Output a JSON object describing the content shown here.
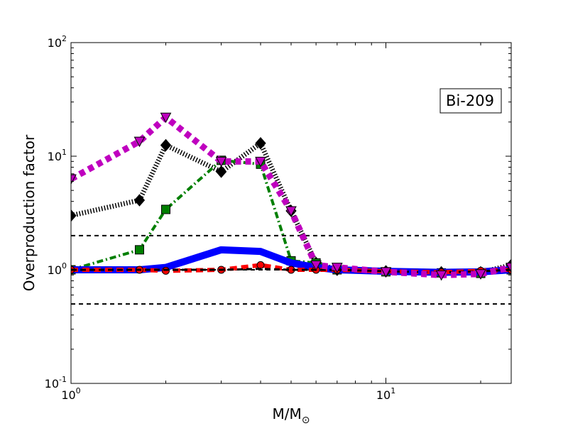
{
  "chart_data": {
    "type": "line",
    "title": "",
    "annotation": "Bi-209",
    "xlabel": "M/M",
    "xlabel_subscript": "⊙",
    "ylabel": "Overproduction factor",
    "xscale": "log",
    "yscale": "log",
    "xlim": [
      1,
      25
    ],
    "ylim": [
      0.1,
      100
    ],
    "x_ticks": [
      {
        "value": 1,
        "base": "10",
        "exp": "0"
      },
      {
        "value": 10,
        "base": "10",
        "exp": "1"
      }
    ],
    "y_ticks": [
      {
        "value": 0.1,
        "base": "10",
        "exp": "-1"
      },
      {
        "value": 1,
        "base": "10",
        "exp": "0"
      },
      {
        "value": 10,
        "base": "10",
        "exp": "1"
      },
      {
        "value": 100,
        "base": "10",
        "exp": "2"
      }
    ],
    "reference_lines": [
      2,
      1,
      0.5
    ],
    "reference_color": "#000000",
    "grid": false,
    "series": [
      {
        "color": "#000000",
        "style": "dotted-thick",
        "marker": "diamond",
        "x": [
          1,
          1.65,
          2,
          3,
          4,
          5,
          6,
          7,
          10,
          15,
          20,
          25
        ],
        "y": [
          3.0,
          4.1,
          12.5,
          7.3,
          13.0,
          3.3,
          1.15,
          1.0,
          0.97,
          0.95,
          0.95,
          1.1
        ]
      },
      {
        "color": "#007f00",
        "style": "dashdot",
        "marker": "square",
        "x": [
          1,
          1.65,
          2,
          3,
          4,
          5,
          6,
          7,
          10,
          15,
          20,
          25
        ],
        "y": [
          1.0,
          1.5,
          3.4,
          9.2,
          8.5,
          1.2,
          1.15,
          1.0,
          0.96,
          0.94,
          0.93,
          1.0
        ]
      },
      {
        "color": "#0000ff",
        "style": "solid",
        "marker": "none",
        "x": [
          1,
          1.65,
          2,
          3,
          4,
          5,
          6,
          7,
          10,
          15,
          20,
          25
        ],
        "y": [
          1.0,
          1.0,
          1.05,
          1.5,
          1.45,
          1.15,
          1.05,
          1.0,
          0.97,
          0.95,
          0.96,
          1.0
        ]
      },
      {
        "color": "#ff0000",
        "style": "dashed",
        "marker": "circle",
        "x": [
          1,
          1.65,
          2,
          3,
          4,
          5,
          6,
          7,
          10,
          15,
          20,
          25
        ],
        "y": [
          1.0,
          1.0,
          0.98,
          1.0,
          1.1,
          1.0,
          1.0,
          1.0,
          0.97,
          0.95,
          0.98,
          1.0
        ]
      },
      {
        "color": "#000000",
        "style": "dashed-thin",
        "marker": "none",
        "x": [
          1,
          1.65,
          2,
          3,
          4,
          5,
          6,
          7,
          10,
          15,
          20,
          25
        ],
        "y": [
          1.0,
          1.0,
          1.0,
          1.0,
          1.02,
          1.0,
          1.0,
          1.0,
          0.97,
          0.95,
          0.97,
          1.0
        ]
      },
      {
        "color": "#bf00bf",
        "style": "dotted-heavy",
        "marker": "triangle-down",
        "x": [
          1,
          1.65,
          2,
          3,
          4,
          5,
          6,
          7,
          10,
          15,
          20,
          25
        ],
        "y": [
          6.3,
          13.5,
          22,
          9.0,
          9.0,
          3.3,
          1.1,
          1.05,
          0.96,
          0.9,
          0.92,
          1.05
        ]
      }
    ]
  }
}
